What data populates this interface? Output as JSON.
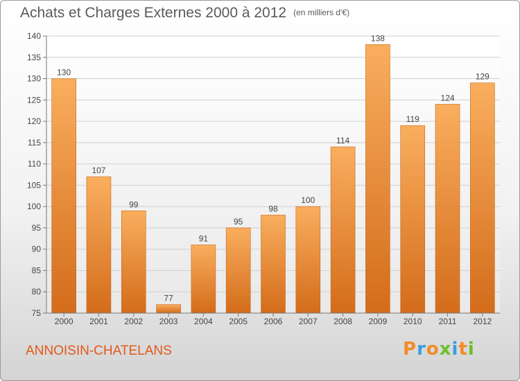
{
  "header": {
    "title": "Achats et Charges Externes 2000 à 2012",
    "unit": "(en milliers d'€)"
  },
  "footer": {
    "commune": "ANNOISIN-CHATELANS",
    "brand": "Proxiti"
  },
  "colors": {
    "bar_light": "#f7a551",
    "bar_dark": "#d9731f",
    "commune": "#e0591b",
    "axis_text": "#444444"
  },
  "chart_data": {
    "type": "bar",
    "title": "Achats et Charges Externes 2000 à 2012",
    "subtitle": "(en milliers d'€)",
    "categories": [
      "2000",
      "2001",
      "2002",
      "2003",
      "2004",
      "2005",
      "2006",
      "2007",
      "2008",
      "2009",
      "2010",
      "2011",
      "2012"
    ],
    "values": [
      130,
      107,
      99,
      77,
      91,
      95,
      98,
      100,
      114,
      138,
      119,
      124,
      129
    ],
    "ylim": [
      75,
      140
    ],
    "yticks": [
      75,
      80,
      85,
      90,
      95,
      100,
      105,
      110,
      115,
      120,
      125,
      130,
      135,
      140
    ],
    "grid": true,
    "xlabel": "",
    "ylabel": ""
  }
}
